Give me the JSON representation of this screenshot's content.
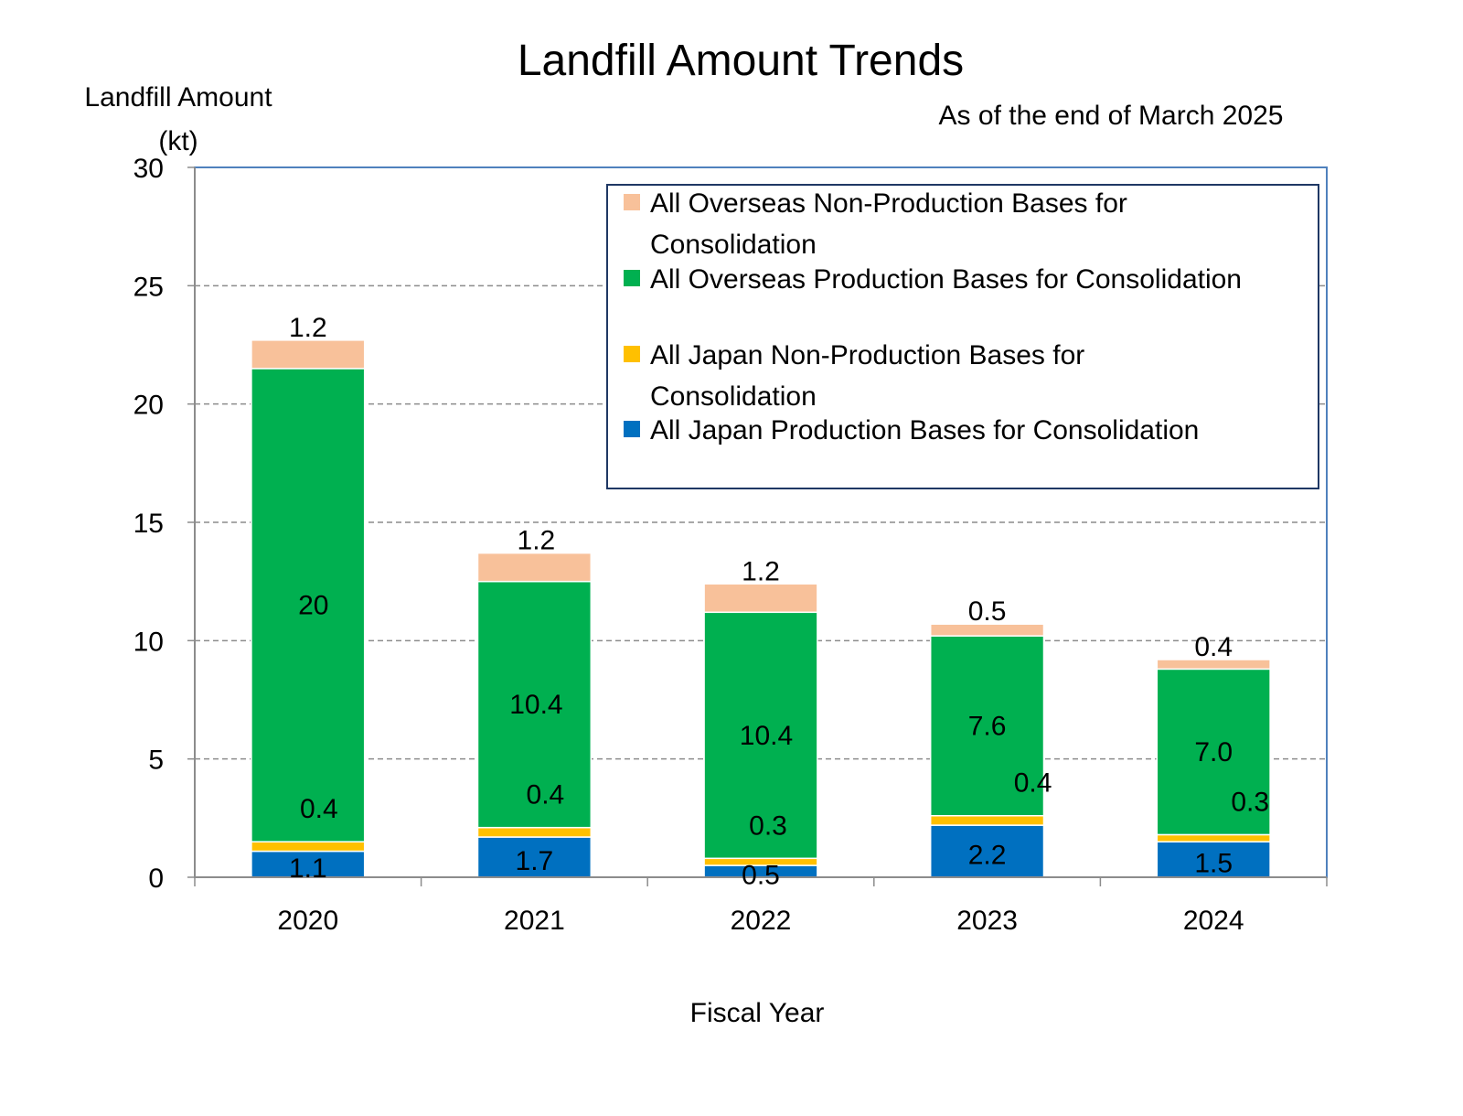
{
  "chart_data": {
    "type": "bar",
    "stacked": true,
    "title": "Landfill Amount Trends",
    "note": "As of the end of March 2025",
    "ylabel_line1": "Landfill Amount",
    "ylabel_line2": "(kt)",
    "xlabel": "Fiscal Year",
    "ylim": [
      0,
      30
    ],
    "yticks": [
      "0",
      "5",
      "10",
      "15",
      "20",
      "25",
      "30"
    ],
    "grid": true,
    "legend_position": "top-right",
    "categories": [
      "2020",
      "2021",
      "2022",
      "2023",
      "2024"
    ],
    "series": [
      {
        "name": "All Japan Production Bases for Consolidation",
        "color": "#0070C0",
        "values": [
          1.1,
          1.7,
          0.5,
          2.2,
          1.5
        ],
        "labels": [
          "1.1",
          "1.7",
          "0.5",
          "2.2",
          "1.5"
        ]
      },
      {
        "name": "All Japan Non-Production Bases for Consolidation",
        "color": "#FFC000",
        "values": [
          0.4,
          0.4,
          0.3,
          0.4,
          0.3
        ],
        "labels": [
          "0.4",
          "0.4",
          "0.3",
          "0.4",
          "0.3"
        ]
      },
      {
        "name": "All Overseas Production Bases for Consolidation",
        "color": "#00B050",
        "values": [
          20,
          10.4,
          10.4,
          7.6,
          7.0
        ],
        "labels": [
          "20",
          "10.4",
          "10.4",
          "7.6",
          "7.0"
        ]
      },
      {
        "name": "All Overseas Non-Production Bases for Consolidation",
        "color": "#F8C19A",
        "values": [
          1.2,
          1.2,
          1.2,
          0.5,
          0.4
        ],
        "labels": [
          "1.2",
          "1.2",
          "1.2",
          "0.5",
          "0.4"
        ]
      }
    ],
    "legend_entries": [
      {
        "series_index": 3,
        "lines": [
          "All Overseas Non-Production Bases for",
          "Consolidation"
        ]
      },
      {
        "series_index": 2,
        "lines": [
          "All Overseas Production Bases for Consolidation"
        ]
      },
      {
        "series_index": 1,
        "lines": [
          "All Japan Non-Production Bases for",
          "Consolidation"
        ]
      },
      {
        "series_index": 0,
        "lines": [
          "All Japan Production Bases for Consolidation"
        ]
      }
    ]
  }
}
